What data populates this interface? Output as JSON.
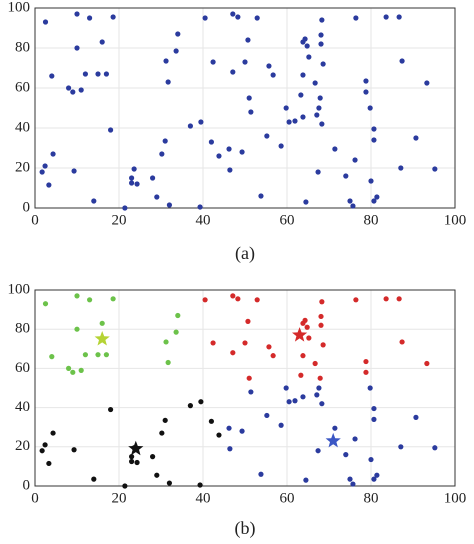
{
  "chart_data": [
    {
      "type": "scatter",
      "caption": "(a)",
      "xlim": [
        0,
        100
      ],
      "ylim": [
        0,
        100
      ],
      "xticks": [
        0,
        20,
        40,
        60,
        80,
        100
      ],
      "yticks": [
        0,
        20,
        40,
        60,
        80,
        100
      ],
      "grid": true,
      "series": [
        {
          "color": "#2b3b9e",
          "marker": "dot",
          "x": [
            2.5,
            10,
            13,
            10,
            16,
            4,
            12,
            15,
            17,
            8,
            9,
            11,
            31.7,
            31.2,
            33.6,
            34,
            18.6,
            18,
            2.4,
            1.7,
            3.3,
            4.3,
            9.3,
            14,
            21.4,
            23,
            23.6,
            24.3,
            23,
            28,
            29,
            30.2,
            31,
            32,
            37,
            39.5,
            39.3,
            42,
            43.8,
            46.4,
            46.2,
            49.3,
            51.4,
            53.8,
            55.2,
            58.6,
            59.8,
            60.5,
            61.9,
            63.8,
            64.5,
            67.1,
            67.6,
            67.4,
            68.3,
            71.4,
            74,
            75,
            75.7,
            76.2,
            79.8,
            80,
            80.7,
            80.7,
            80.7,
            81.4,
            87.1,
            90.7,
            95.2,
            40.5,
            42.4,
            47.1,
            48.3,
            47.1,
            50,
            50.7,
            51,
            52.9,
            55.7,
            56.7,
            63.3,
            63.8,
            63.8,
            64.3,
            64.8,
            65.2,
            66.7,
            68.3,
            68.1,
            68.6,
            68.1,
            67.9,
            76.4,
            78.8,
            78.8,
            83.6,
            86.7,
            87.4,
            93.3
          ],
          "y": [
            93,
            97,
            95,
            80,
            83,
            66,
            67,
            67,
            67,
            60,
            58,
            59,
            63,
            73.5,
            78.5,
            87,
            95.5,
            39,
            21,
            18,
            11.5,
            27,
            18.5,
            3.5,
            0,
            12.5,
            19.5,
            12,
            15,
            15,
            5.5,
            27,
            33.5,
            1.5,
            41,
            43,
            0.5,
            33,
            26,
            19,
            29.5,
            28,
            48,
            6,
            36,
            31,
            50,
            43,
            43.5,
            45.5,
            3,
            46.5,
            50,
            18,
            42,
            29.5,
            16,
            3.5,
            1,
            24,
            50,
            13.5,
            39.5,
            34,
            3.5,
            5.5,
            20,
            35,
            19.5,
            95,
            73,
            97,
            95.5,
            68,
            73,
            84,
            55,
            95,
            71,
            66.5,
            56.5,
            66.5,
            83,
            84.5,
            81,
            75.5,
            62.5,
            94,
            86.5,
            72,
            82,
            55,
            95,
            58,
            63.5,
            95.5,
            95.5,
            73.5,
            62.5
          ]
        }
      ]
    },
    {
      "type": "scatter",
      "caption": "(b)",
      "xlim": [
        0,
        100
      ],
      "ylim": [
        0,
        100
      ],
      "xticks": [
        0,
        20,
        40,
        60,
        80,
        100
      ],
      "yticks": [
        0,
        20,
        40,
        60,
        80,
        100
      ],
      "grid": true,
      "series": [
        {
          "color": "#6cc24a",
          "marker": "dot",
          "x": [
            2.5,
            10,
            13,
            10,
            16,
            4,
            12,
            15,
            17,
            8,
            9,
            11,
            31.7,
            31.2,
            33.6,
            34,
            18.6
          ],
          "y": [
            93,
            97,
            95,
            80,
            83,
            66,
            67,
            67,
            67,
            60,
            58,
            59,
            63,
            73.5,
            78.5,
            87,
            95.5
          ]
        },
        {
          "color": "#111111",
          "marker": "dot",
          "x": [
            18,
            2.4,
            1.7,
            3.3,
            4.3,
            9.3,
            14,
            21.4,
            23,
            23.6,
            24.3,
            23,
            28,
            29,
            30.2,
            31,
            32,
            37,
            39.5,
            39.3,
            42,
            43.8
          ],
          "y": [
            39,
            21,
            18,
            11.5,
            27,
            18.5,
            3.5,
            0,
            12.5,
            19.5,
            12,
            15,
            15,
            5.5,
            27,
            33.5,
            1.5,
            41,
            43,
            0.5,
            33,
            26
          ]
        },
        {
          "color": "#2b3b9e",
          "marker": "dot",
          "x": [
            46.4,
            46.2,
            49.3,
            51.4,
            53.8,
            55.2,
            58.6,
            59.8,
            60.5,
            61.9,
            63.8,
            64.5,
            67.1,
            67.6,
            67.4,
            68.3,
            71.4,
            74,
            75,
            75.7,
            76.2,
            79.8,
            80,
            80.7,
            80.7,
            80.7,
            81.4,
            87.1,
            90.7,
            95.2
          ],
          "y": [
            19,
            29.5,
            28,
            48,
            6,
            36,
            31,
            50,
            43,
            43.5,
            45.5,
            3,
            46.5,
            50,
            18,
            42,
            29.5,
            16,
            3.5,
            1,
            24,
            50,
            13.5,
            39.5,
            34,
            3.5,
            5.5,
            20,
            35,
            19.5
          ]
        },
        {
          "color": "#d42a2a",
          "marker": "dot",
          "x": [
            40.5,
            42.4,
            47.1,
            48.3,
            47.1,
            50,
            50.7,
            51,
            52.9,
            55.7,
            56.7,
            63.3,
            63.8,
            63.8,
            64.3,
            64.8,
            65.2,
            66.7,
            68.3,
            68.1,
            68.6,
            68.1,
            67.9,
            76.4,
            78.8,
            78.8,
            83.6,
            86.7,
            87.4,
            93.3
          ],
          "y": [
            95,
            73,
            97,
            95.5,
            68,
            73,
            84,
            55,
            95,
            71,
            66.5,
            56.5,
            66.5,
            83,
            84.5,
            81,
            75.5,
            62.5,
            94,
            86.5,
            72,
            82,
            55,
            95,
            58,
            63.5,
            95.5,
            95.5,
            73.5,
            62.5
          ]
        },
        {
          "color": "#b5d334",
          "marker": "star",
          "x": [
            16
          ],
          "y": [
            75
          ]
        },
        {
          "color": "#111111",
          "marker": "star",
          "x": [
            24
          ],
          "y": [
            19
          ]
        },
        {
          "color": "#3a56c4",
          "marker": "star",
          "x": [
            71
          ],
          "y": [
            23
          ]
        },
        {
          "color": "#d42a2a",
          "marker": "star",
          "x": [
            63
          ],
          "y": [
            77
          ]
        }
      ]
    }
  ]
}
